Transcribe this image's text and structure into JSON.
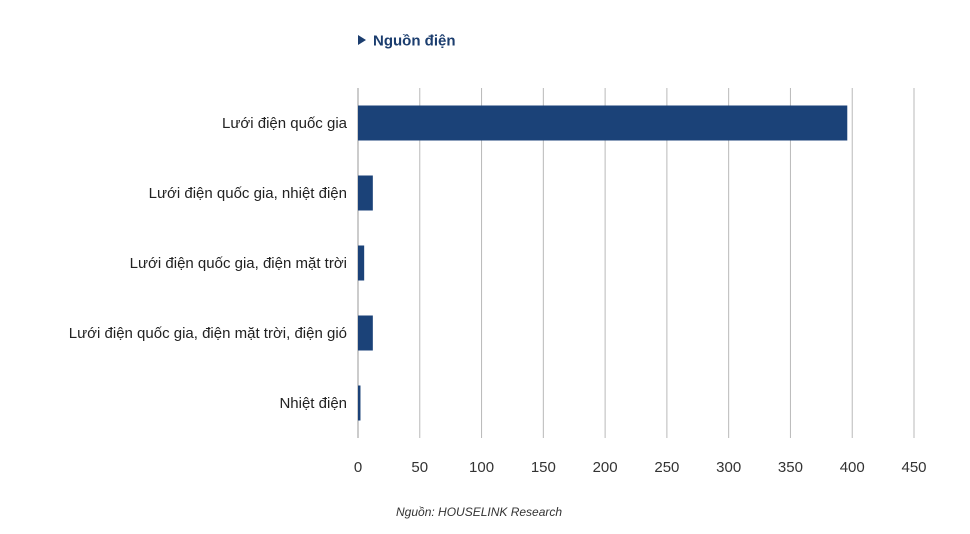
{
  "chart_data": {
    "type": "bar",
    "orientation": "horizontal",
    "title": "Nguồn điện",
    "categories": [
      "Lưới điện quốc gia",
      "Lưới điện quốc gia, nhiệt điện",
      "Lưới điện quốc gia, điện mặt trời",
      "Lưới điện quốc gia, điện mặt trời, điện gió",
      "Nhiệt điện"
    ],
    "values": [
      396,
      12,
      5,
      12,
      2
    ],
    "xlim": [
      0,
      450
    ],
    "x_ticks": [
      0,
      50,
      100,
      150,
      200,
      250,
      300,
      350,
      400,
      450
    ],
    "grid": true,
    "bar_color": "#1b4278",
    "xlabel": "",
    "ylabel": ""
  },
  "source_note": "Nguồn: HOUSELINK Research"
}
